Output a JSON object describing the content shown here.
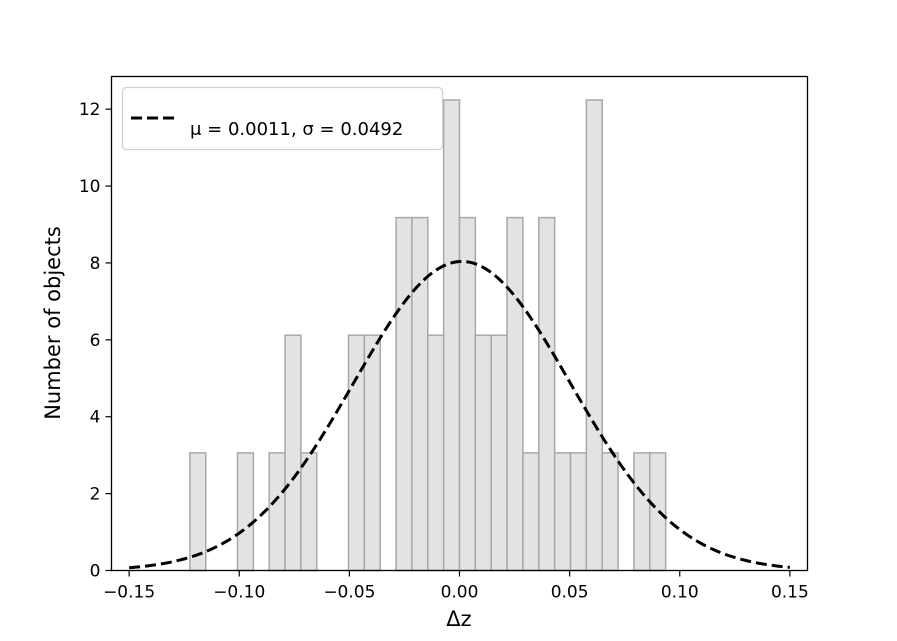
{
  "chart_data": {
    "type": "bar",
    "subtype": "histogram with fitted normal curve",
    "xlabel": "Δz",
    "ylabel": "Number of objects",
    "xlim": [
      -0.158,
      0.158
    ],
    "ylim": [
      0,
      12.85
    ],
    "xticks": [
      -0.15,
      -0.1,
      -0.05,
      0.0,
      0.05,
      0.1,
      0.15
    ],
    "xtick_labels": [
      "−0.15",
      "−0.10",
      "−0.05",
      "0.00",
      "0.05",
      "0.10",
      "0.15"
    ],
    "yticks": [
      0,
      2,
      4,
      6,
      8,
      10,
      12
    ],
    "ytick_labels": [
      "0",
      "2",
      "4",
      "6",
      "8",
      "10",
      "12"
    ],
    "bin_width": 0.0072,
    "bins": [
      {
        "x0": -0.1224,
        "value": 3.06
      },
      {
        "x0": -0.1008,
        "value": 3.06
      },
      {
        "x0": -0.0864,
        "value": 3.06
      },
      {
        "x0": -0.0792,
        "value": 6.12
      },
      {
        "x0": -0.072,
        "value": 3.06
      },
      {
        "x0": -0.0504,
        "value": 6.12
      },
      {
        "x0": -0.0432,
        "value": 6.12
      },
      {
        "x0": -0.0288,
        "value": 9.18
      },
      {
        "x0": -0.0216,
        "value": 9.18
      },
      {
        "x0": -0.0144,
        "value": 6.12
      },
      {
        "x0": -0.0072,
        "value": 12.24
      },
      {
        "x0": 0.0,
        "value": 9.18
      },
      {
        "x0": 0.0072,
        "value": 6.12
      },
      {
        "x0": 0.0144,
        "value": 6.12
      },
      {
        "x0": 0.0216,
        "value": 9.18
      },
      {
        "x0": 0.0288,
        "value": 3.06
      },
      {
        "x0": 0.036,
        "value": 9.18
      },
      {
        "x0": 0.0432,
        "value": 3.06
      },
      {
        "x0": 0.0504,
        "value": 3.06
      },
      {
        "x0": 0.0576,
        "value": 12.24
      },
      {
        "x0": 0.0648,
        "value": 3.06
      },
      {
        "x0": 0.0792,
        "value": 3.06
      },
      {
        "x0": 0.0864,
        "value": 3.06
      }
    ],
    "fit": {
      "mu": 0.0011,
      "sigma": 0.0492,
      "x_range": [
        -0.15,
        0.15
      ],
      "legend_label": "μ = 0.0011, σ = 0.0492"
    },
    "legend": {
      "placement": "top-left"
    },
    "grid": false,
    "colors": {
      "bar_fill": "#e3e3e3",
      "bar_edge": "#a8a8a8",
      "curve": "#000000",
      "axes": "#000000"
    }
  }
}
